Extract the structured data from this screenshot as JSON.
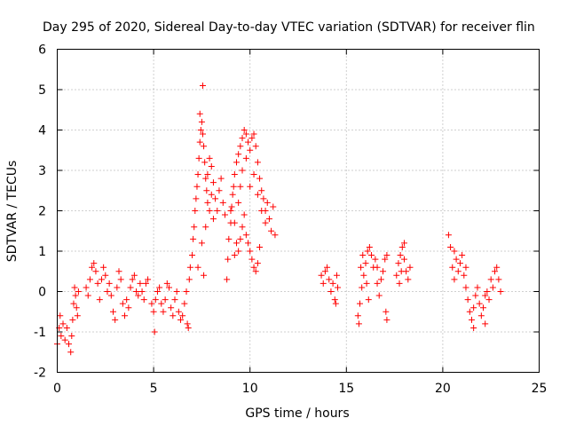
{
  "chart_data": {
    "type": "scatter",
    "title": "Day 295 of 2020, Sidereal Day-to-day VTEC variation (SDTVAR) for receiver flin",
    "xlabel": "GPS time / hours",
    "ylabel": "SDTVAR / TECUs",
    "xlim": [
      0,
      25
    ],
    "ylim": [
      -2,
      6
    ],
    "xticks": [
      "0",
      "5",
      "10",
      "15",
      "20",
      "25"
    ],
    "yticks": [
      "-2",
      "-1",
      "0",
      "1",
      "2",
      "3",
      "4",
      "5",
      "6"
    ],
    "grid": true,
    "marker": "+",
    "color": "#ff0000",
    "series": [
      {
        "name": "SDTVAR",
        "points": [
          [
            0.0,
            -1.3
          ],
          [
            0.1,
            -0.9
          ],
          [
            0.15,
            -0.6
          ],
          [
            0.2,
            -1.1
          ],
          [
            0.3,
            -0.8
          ],
          [
            0.4,
            -1.2
          ],
          [
            0.5,
            -0.9
          ],
          [
            0.6,
            -1.3
          ],
          [
            0.7,
            -1.5
          ],
          [
            0.75,
            -1.1
          ],
          [
            0.8,
            -0.7
          ],
          [
            0.85,
            -0.3
          ],
          [
            0.9,
            0.1
          ],
          [
            0.95,
            -0.1
          ],
          [
            1.0,
            -0.4
          ],
          [
            1.05,
            -0.6
          ],
          [
            1.1,
            0.0
          ],
          [
            1.5,
            0.1
          ],
          [
            1.6,
            -0.1
          ],
          [
            1.7,
            0.3
          ],
          [
            1.8,
            0.6
          ],
          [
            1.9,
            0.7
          ],
          [
            2.0,
            0.5
          ],
          [
            2.1,
            0.2
          ],
          [
            2.2,
            -0.2
          ],
          [
            2.3,
            0.3
          ],
          [
            2.4,
            0.6
          ],
          [
            2.5,
            0.4
          ],
          [
            2.6,
            0.0
          ],
          [
            2.7,
            0.2
          ],
          [
            2.8,
            -0.1
          ],
          [
            2.9,
            -0.5
          ],
          [
            3.0,
            -0.7
          ],
          [
            3.1,
            0.1
          ],
          [
            3.2,
            0.5
          ],
          [
            3.3,
            0.3
          ],
          [
            3.4,
            -0.3
          ],
          [
            3.5,
            -0.6
          ],
          [
            3.6,
            -0.2
          ],
          [
            3.7,
            -0.4
          ],
          [
            3.8,
            0.1
          ],
          [
            3.9,
            0.3
          ],
          [
            4.0,
            0.4
          ],
          [
            4.1,
            0.0
          ],
          [
            4.2,
            -0.1
          ],
          [
            4.3,
            0.2
          ],
          [
            4.4,
            0.0
          ],
          [
            4.5,
            -0.2
          ],
          [
            4.6,
            0.2
          ],
          [
            4.7,
            0.3
          ],
          [
            4.9,
            -0.3
          ],
          [
            5.0,
            -0.5
          ],
          [
            5.05,
            -1.0
          ],
          [
            5.1,
            -0.2
          ],
          [
            5.2,
            0.0
          ],
          [
            5.3,
            0.1
          ],
          [
            5.4,
            -0.3
          ],
          [
            5.5,
            -0.5
          ],
          [
            5.6,
            -0.2
          ],
          [
            5.7,
            0.2
          ],
          [
            5.8,
            0.1
          ],
          [
            5.9,
            -0.4
          ],
          [
            6.0,
            -0.6
          ],
          [
            6.1,
            -0.2
          ],
          [
            6.2,
            0.0
          ],
          [
            6.3,
            -0.5
          ],
          [
            6.4,
            -0.7
          ],
          [
            6.5,
            -0.6
          ],
          [
            6.6,
            -0.3
          ],
          [
            6.7,
            0.0
          ],
          [
            6.75,
            -0.8
          ],
          [
            6.8,
            -0.9
          ],
          [
            6.85,
            0.3
          ],
          [
            6.9,
            0.6
          ],
          [
            7.0,
            0.9
          ],
          [
            7.05,
            1.3
          ],
          [
            7.1,
            1.6
          ],
          [
            7.15,
            2.0
          ],
          [
            7.2,
            2.3
          ],
          [
            7.25,
            2.6
          ],
          [
            7.3,
            2.9
          ],
          [
            7.35,
            3.3
          ],
          [
            7.4,
            3.7
          ],
          [
            7.45,
            4.0
          ],
          [
            7.5,
            4.2
          ],
          [
            7.55,
            3.9
          ],
          [
            7.6,
            3.6
          ],
          [
            7.65,
            3.2
          ],
          [
            7.7,
            2.8
          ],
          [
            7.75,
            2.5
          ],
          [
            7.8,
            2.2
          ],
          [
            7.9,
            2.0
          ],
          [
            8.0,
            2.4
          ],
          [
            8.1,
            2.7
          ],
          [
            8.2,
            2.3
          ],
          [
            8.3,
            2.0
          ],
          [
            8.4,
            2.5
          ],
          [
            8.5,
            2.8
          ],
          [
            8.6,
            2.2
          ],
          [
            8.7,
            1.9
          ],
          [
            7.4,
            4.4
          ],
          [
            7.55,
            5.1
          ],
          [
            7.3,
            0.6
          ],
          [
            7.5,
            1.2
          ],
          [
            7.6,
            0.4
          ],
          [
            7.7,
            1.6
          ],
          [
            7.8,
            2.9
          ],
          [
            7.9,
            3.3
          ],
          [
            8.0,
            3.1
          ],
          [
            8.1,
            1.8
          ],
          [
            8.8,
            0.3
          ],
          [
            8.85,
            0.8
          ],
          [
            8.9,
            1.3
          ],
          [
            9.0,
            1.7
          ],
          [
            9.05,
            2.1
          ],
          [
            9.1,
            2.4
          ],
          [
            9.15,
            2.6
          ],
          [
            9.2,
            2.9
          ],
          [
            9.3,
            3.2
          ],
          [
            9.4,
            3.4
          ],
          [
            9.5,
            3.6
          ],
          [
            9.6,
            3.8
          ],
          [
            9.7,
            4.0
          ],
          [
            9.8,
            3.9
          ],
          [
            9.9,
            3.7
          ],
          [
            10.0,
            3.5
          ],
          [
            10.1,
            3.8
          ],
          [
            10.2,
            3.9
          ],
          [
            10.3,
            3.6
          ],
          [
            10.4,
            3.2
          ],
          [
            10.5,
            2.8
          ],
          [
            10.6,
            2.5
          ],
          [
            10.7,
            2.3
          ],
          [
            10.8,
            2.0
          ],
          [
            10.9,
            2.2
          ],
          [
            11.0,
            1.8
          ],
          [
            11.1,
            1.5
          ],
          [
            11.2,
            2.1
          ],
          [
            11.3,
            1.4
          ],
          [
            9.2,
            0.9
          ],
          [
            9.3,
            1.2
          ],
          [
            9.4,
            1.0
          ],
          [
            9.5,
            1.3
          ],
          [
            9.6,
            1.6
          ],
          [
            9.7,
            1.9
          ],
          [
            9.8,
            1.4
          ],
          [
            9.9,
            1.2
          ],
          [
            10.0,
            1.0
          ],
          [
            10.1,
            0.8
          ],
          [
            10.2,
            0.6
          ],
          [
            10.3,
            0.5
          ],
          [
            10.4,
            0.7
          ],
          [
            10.5,
            1.1
          ],
          [
            9.0,
            2.0
          ],
          [
            9.2,
            1.7
          ],
          [
            9.4,
            2.2
          ],
          [
            9.5,
            2.6
          ],
          [
            9.6,
            3.0
          ],
          [
            9.8,
            3.3
          ],
          [
            10.0,
            2.6
          ],
          [
            10.2,
            2.9
          ],
          [
            10.4,
            2.4
          ],
          [
            10.6,
            2.0
          ],
          [
            10.8,
            1.7
          ],
          [
            13.7,
            0.4
          ],
          [
            13.8,
            0.2
          ],
          [
            13.9,
            0.5
          ],
          [
            14.0,
            0.6
          ],
          [
            14.1,
            0.3
          ],
          [
            14.2,
            0.0
          ],
          [
            14.3,
            0.2
          ],
          [
            14.4,
            -0.2
          ],
          [
            14.45,
            -0.3
          ],
          [
            14.5,
            0.4
          ],
          [
            14.55,
            0.1
          ],
          [
            15.6,
            -0.6
          ],
          [
            15.65,
            -0.8
          ],
          [
            15.7,
            -0.3
          ],
          [
            15.8,
            0.1
          ],
          [
            15.9,
            0.4
          ],
          [
            16.0,
            0.7
          ],
          [
            16.1,
            1.0
          ],
          [
            16.2,
            1.1
          ],
          [
            16.3,
            0.9
          ],
          [
            16.4,
            0.6
          ],
          [
            16.5,
            0.8
          ],
          [
            16.6,
            0.2
          ],
          [
            16.7,
            -0.1
          ],
          [
            16.8,
            0.3
          ],
          [
            16.9,
            0.5
          ],
          [
            17.0,
            0.8
          ],
          [
            17.05,
            -0.5
          ],
          [
            17.1,
            -0.7
          ],
          [
            17.1,
            0.9
          ],
          [
            15.75,
            0.6
          ],
          [
            15.85,
            0.9
          ],
          [
            16.05,
            0.2
          ],
          [
            16.15,
            -0.2
          ],
          [
            16.6,
            0.6
          ],
          [
            17.6,
            0.4
          ],
          [
            17.7,
            0.7
          ],
          [
            17.8,
            0.9
          ],
          [
            17.9,
            1.1
          ],
          [
            18.0,
            0.8
          ],
          [
            18.1,
            0.5
          ],
          [
            18.2,
            0.3
          ],
          [
            18.3,
            0.6
          ],
          [
            17.75,
            0.2
          ],
          [
            17.85,
            0.5
          ],
          [
            18.0,
            1.2
          ],
          [
            20.3,
            1.4
          ],
          [
            20.4,
            1.1
          ],
          [
            20.5,
            0.6
          ],
          [
            20.6,
            0.3
          ],
          [
            20.7,
            0.8
          ],
          [
            20.8,
            0.5
          ],
          [
            20.9,
            0.7
          ],
          [
            21.0,
            0.9
          ],
          [
            21.1,
            0.4
          ],
          [
            21.2,
            0.1
          ],
          [
            21.3,
            -0.2
          ],
          [
            21.4,
            -0.5
          ],
          [
            21.5,
            -0.7
          ],
          [
            21.6,
            -0.4
          ],
          [
            21.7,
            -0.1
          ],
          [
            21.8,
            0.1
          ],
          [
            21.9,
            -0.3
          ],
          [
            22.0,
            -0.6
          ],
          [
            22.1,
            -0.4
          ],
          [
            22.2,
            -0.1
          ],
          [
            22.3,
            0.0
          ],
          [
            22.4,
            -0.2
          ],
          [
            22.5,
            0.3
          ],
          [
            22.6,
            0.1
          ],
          [
            22.7,
            0.5
          ],
          [
            22.8,
            0.6
          ],
          [
            22.9,
            0.3
          ],
          [
            23.0,
            0.0
          ],
          [
            20.6,
            1.0
          ],
          [
            21.2,
            0.6
          ],
          [
            21.6,
            -0.9
          ],
          [
            22.2,
            -0.8
          ]
        ]
      }
    ]
  }
}
